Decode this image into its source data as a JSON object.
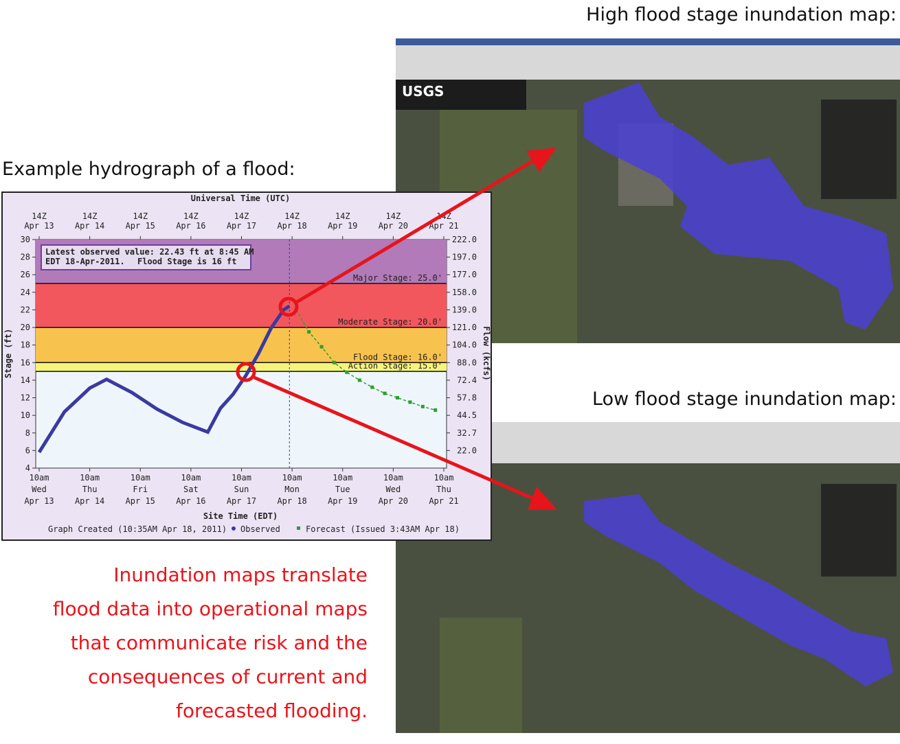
{
  "headings": {
    "hydrograph": "Example hydrograph of a flood:",
    "high_map": "High flood stage inundation map:",
    "low_map": "Low flood stage inundation map:"
  },
  "caption": [
    "Inundation maps translate",
    "flood data into operational maps",
    "that communicate risk and the",
    "consequences of current and",
    "forecasted flooding."
  ],
  "chart_data": {
    "type": "line",
    "top_axis_label": "Universal Time (UTC)",
    "x_label": "Site Time (EDT)",
    "y_label": "Stage (ft)",
    "y2_label": "Flow (kcfs)",
    "annotation": {
      "lines": [
        "Latest observed value: 22.43 ft at 8:45 AM",
        "EDT 18-Apr-2011."
      ],
      "note": "Flood Stage is 16 ft"
    },
    "footer": "Graph Created (10:35AM Apr 18, 2011)",
    "xlim": [
      "2011-04-13T10:00",
      "2011-04-21T10:00"
    ],
    "xticks": [
      {
        "value": "2011-04-13T10:00",
        "label": [
          "10am",
          "Wed",
          "Apr 13"
        ]
      },
      {
        "value": "2011-04-14T10:00",
        "label": [
          "10am",
          "Thu",
          "Apr 14"
        ]
      },
      {
        "value": "2011-04-15T10:00",
        "label": [
          "10am",
          "Fri",
          "Apr 15"
        ]
      },
      {
        "value": "2011-04-16T10:00",
        "label": [
          "10am",
          "Sat",
          "Apr 16"
        ]
      },
      {
        "value": "2011-04-17T10:00",
        "label": [
          "10am",
          "Sun",
          "Apr 17"
        ]
      },
      {
        "value": "2011-04-18T10:00",
        "label": [
          "10am",
          "Mon",
          "Apr 18"
        ]
      },
      {
        "value": "2011-04-19T10:00",
        "label": [
          "10am",
          "Tue",
          "Apr 19"
        ]
      },
      {
        "value": "2011-04-20T10:00",
        "label": [
          "10am",
          "Wed",
          "Apr 20"
        ]
      },
      {
        "value": "2011-04-21T10:00",
        "label": [
          "10am",
          "Thu",
          "Apr 21"
        ]
      }
    ],
    "x2ticks": [
      {
        "value": "2011-04-13T10:00",
        "label": [
          "14Z",
          "Apr 13"
        ]
      },
      {
        "value": "2011-04-14T10:00",
        "label": [
          "14Z",
          "Apr 14"
        ]
      },
      {
        "value": "2011-04-15T10:00",
        "label": [
          "14Z",
          "Apr 15"
        ]
      },
      {
        "value": "2011-04-16T10:00",
        "label": [
          "14Z",
          "Apr 16"
        ]
      },
      {
        "value": "2011-04-17T10:00",
        "label": [
          "14Z",
          "Apr 17"
        ]
      },
      {
        "value": "2011-04-18T10:00",
        "label": [
          "14Z",
          "Apr 18"
        ]
      },
      {
        "value": "2011-04-19T10:00",
        "label": [
          "14Z",
          "Apr 19"
        ]
      },
      {
        "value": "2011-04-20T10:00",
        "label": [
          "14Z",
          "Apr 20"
        ]
      },
      {
        "value": "2011-04-21T10:00",
        "label": [
          "14Z",
          "Apr 21"
        ]
      }
    ],
    "ylim": [
      4,
      30
    ],
    "yticks": [
      4,
      6,
      8,
      10,
      12,
      14,
      16,
      18,
      20,
      22,
      24,
      26,
      28,
      30
    ],
    "y2ticks": [
      {
        "value": 22.0,
        "label": "22.0"
      },
      {
        "value": 32.7,
        "label": "32.7"
      },
      {
        "value": 44.5,
        "label": "44.5"
      },
      {
        "value": 57.8,
        "label": "57.8"
      },
      {
        "value": 72.4,
        "label": "72.4"
      },
      {
        "value": 88.0,
        "label": "88.0"
      },
      {
        "value": 104.0,
        "label": "104.0"
      },
      {
        "value": 121.0,
        "label": "121.0"
      },
      {
        "value": 139.0,
        "label": "139.0"
      },
      {
        "value": 158.0,
        "label": "158.0"
      },
      {
        "value": 177.0,
        "label": "177.0"
      },
      {
        "value": 197.0,
        "label": "197.0"
      },
      {
        "value": 222.0,
        "label": "222.0"
      }
    ],
    "thresholds": [
      {
        "label": "Action Stage: 15.0'",
        "value": 15,
        "color": "#f5f57a"
      },
      {
        "label": "Flood Stage: 16.0'",
        "value": 16,
        "color": "#f8c24e"
      },
      {
        "label": "Moderate Stage: 20.0'",
        "value": 20,
        "color": "#f2575e"
      },
      {
        "label": "Major Stage: 25.0'",
        "value": 25,
        "color": "#b27ab8"
      }
    ],
    "series": [
      {
        "name": "Observed",
        "color": "#3a3aa0",
        "x": [
          "2011-04-13T10:00",
          "2011-04-13T22:00",
          "2011-04-14T10:00",
          "2011-04-14T18:00",
          "2011-04-15T06:00",
          "2011-04-15T18:00",
          "2011-04-16T06:00",
          "2011-04-16T18:00",
          "2011-04-17T00:00",
          "2011-04-17T06:00",
          "2011-04-17T12:00",
          "2011-04-17T18:00",
          "2011-04-18T00:00",
          "2011-04-18T06:00",
          "2011-04-18T08:45"
        ],
        "values": [
          5.8,
          10.4,
          13.1,
          14.1,
          12.6,
          10.7,
          9.2,
          8.1,
          10.8,
          12.4,
          14.5,
          17.0,
          19.9,
          22.0,
          22.43
        ]
      },
      {
        "name": "Forecast (Issued 3:43AM Apr 18)",
        "color": "#2e9e2e",
        "x": [
          "2011-04-18T12:00",
          "2011-04-18T18:00",
          "2011-04-19T00:00",
          "2011-04-19T06:00",
          "2011-04-19T12:00",
          "2011-04-19T18:00",
          "2011-04-20T00:00",
          "2011-04-20T06:00",
          "2011-04-20T12:00",
          "2011-04-20T18:00",
          "2011-04-21T00:00",
          "2011-04-21T06:00"
        ],
        "values": [
          22.0,
          19.5,
          17.8,
          16.0,
          14.9,
          14.0,
          13.2,
          12.5,
          12.0,
          11.5,
          11.0,
          10.6
        ]
      }
    ]
  }
}
